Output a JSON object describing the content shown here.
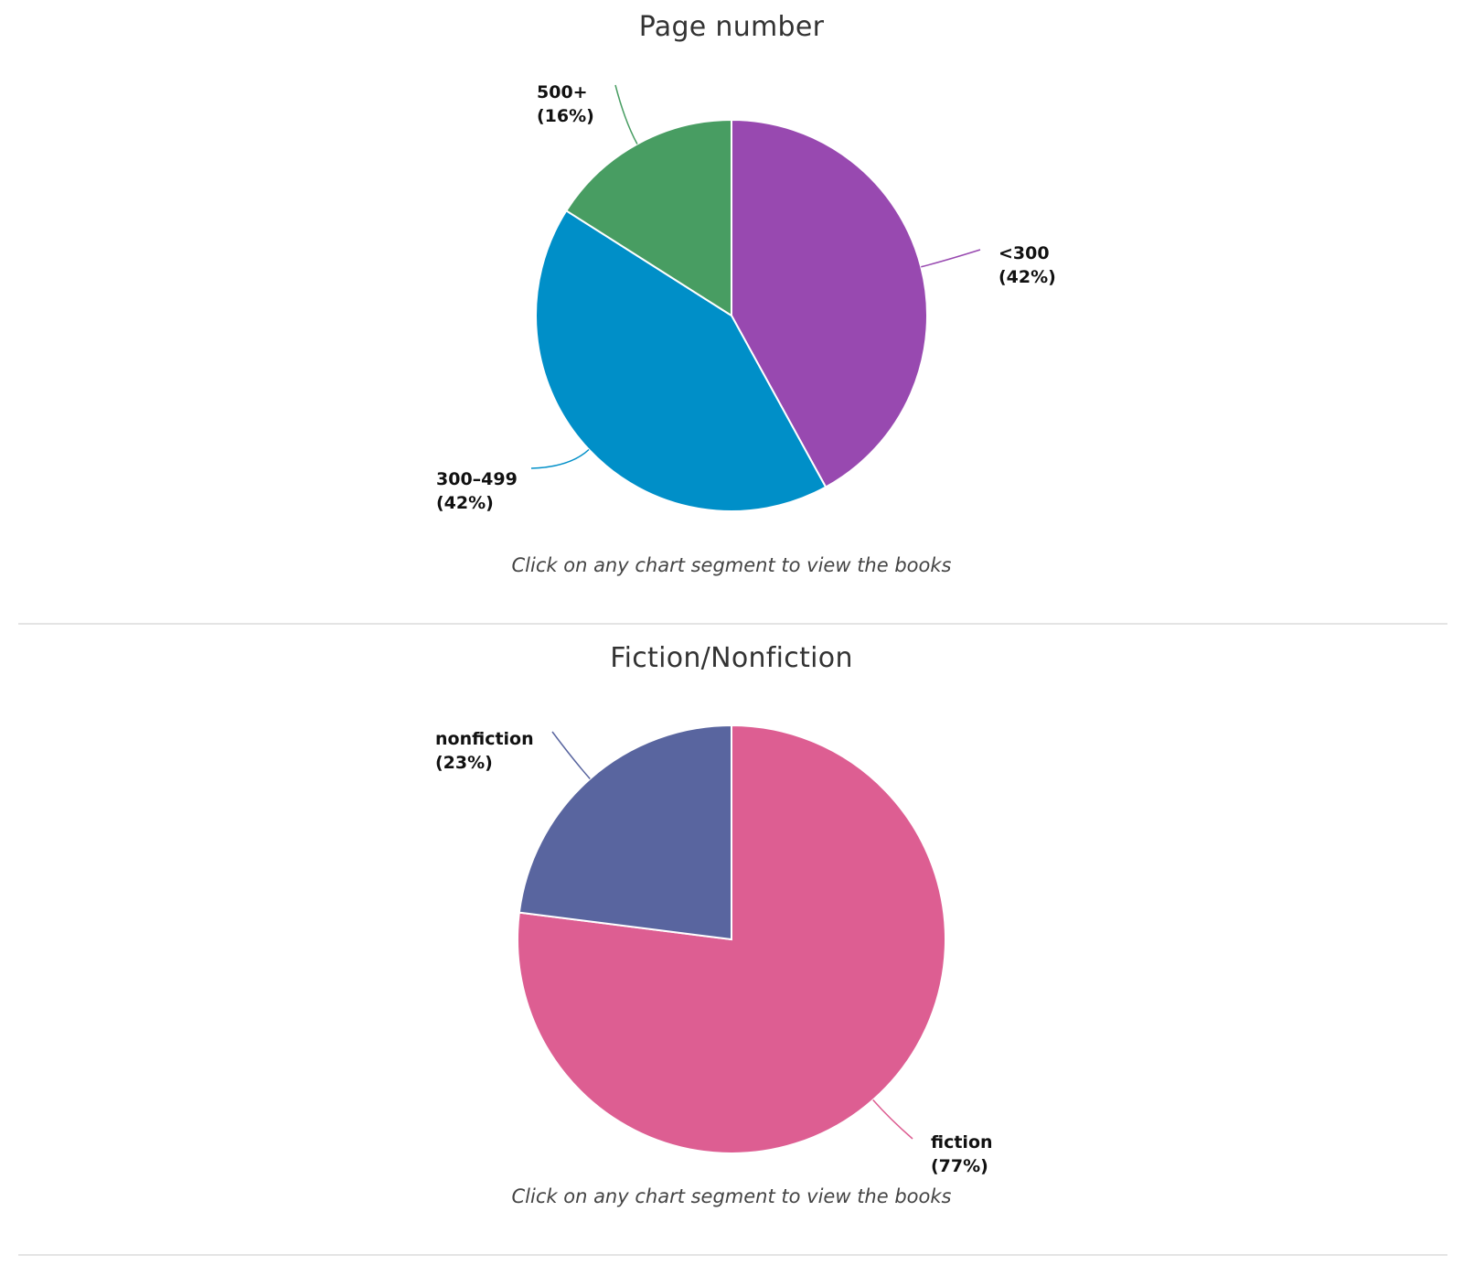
{
  "hint_text": "Click on any chart segment to view the books",
  "chart_data": [
    {
      "type": "pie",
      "title": "Page number",
      "slices": [
        {
          "label": "<300",
          "percent_label": "(42%)",
          "value": 42,
          "color": "#9849b0"
        },
        {
          "label": "300–499",
          "percent_label": "(42%)",
          "value": 42,
          "color": "#008fc8"
        },
        {
          "label": "500+",
          "percent_label": "(16%)",
          "value": 16,
          "color": "#489d62"
        }
      ]
    },
    {
      "type": "pie",
      "title": "Fiction/Nonfiction",
      "slices": [
        {
          "label": "fiction",
          "percent_label": "(77%)",
          "value": 77,
          "color": "#dd5e92"
        },
        {
          "label": "nonfiction",
          "percent_label": "(23%)",
          "value": 23,
          "color": "#59659f"
        }
      ]
    }
  ]
}
